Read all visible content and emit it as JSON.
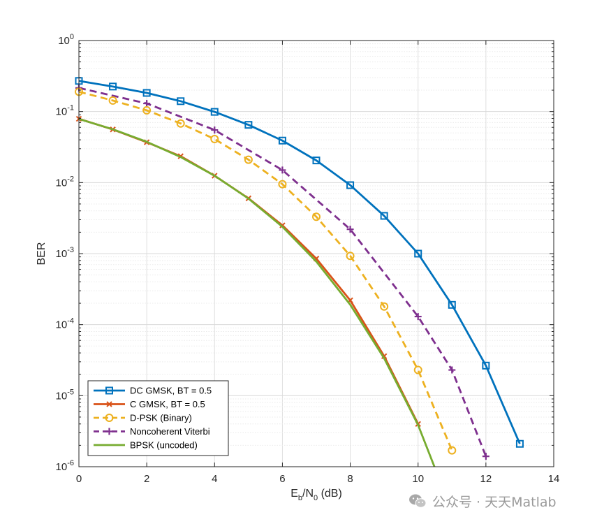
{
  "chart_data": {
    "type": "line",
    "title": "",
    "xlabel": {
      "main": "E",
      "sub1": "b",
      "mid": "/N",
      "sub2": "0",
      "end": " (dB)"
    },
    "ylabel": "BER",
    "xlim": [
      0,
      14
    ],
    "ylim": [
      1e-06,
      1
    ],
    "yscale": "log",
    "grid": true,
    "minor_grid": true,
    "legend_position": "bottom-left",
    "xticks": [
      "0",
      "2",
      "4",
      "6",
      "8",
      "10",
      "12",
      "14"
    ],
    "yticks": [
      {
        "base": "10",
        "exp": "0"
      },
      {
        "base": "10",
        "exp": "-1"
      },
      {
        "base": "10",
        "exp": "-2"
      },
      {
        "base": "10",
        "exp": "-3"
      },
      {
        "base": "10",
        "exp": "-4"
      },
      {
        "base": "10",
        "exp": "-5"
      },
      {
        "base": "10",
        "exp": "-6"
      }
    ],
    "series": [
      {
        "name": "DC GMSK, BT = 0.5",
        "color": "#0072BD",
        "dash": "solid",
        "marker": "square",
        "x": [
          0,
          1,
          2,
          3,
          4,
          5,
          6,
          7,
          8,
          9,
          10,
          11,
          12,
          13
        ],
        "y": [
          0.27,
          0.225,
          0.183,
          0.14,
          0.099,
          0.065,
          0.039,
          0.0205,
          0.0092,
          0.0034,
          0.001,
          0.00019,
          2.65e-05,
          2.1e-06
        ]
      },
      {
        "name": "C GMSK, BT = 0.5",
        "color": "#D95319",
        "dash": "solid",
        "marker": "x",
        "x": [
          0,
          1,
          2,
          3,
          4,
          5,
          6,
          7,
          8,
          9,
          10
        ],
        "y": [
          0.079,
          0.056,
          0.037,
          0.0235,
          0.0125,
          0.006,
          0.0025,
          0.00085,
          0.00022,
          3.6e-05,
          4e-06
        ]
      },
      {
        "name": "D-PSK (Binary)",
        "color": "#EDB120",
        "dash": "dashed",
        "marker": "circle",
        "x": [
          0,
          1,
          2,
          3,
          4,
          5,
          6,
          7,
          8,
          9,
          10,
          11
        ],
        "y": [
          0.19,
          0.143,
          0.104,
          0.068,
          0.041,
          0.021,
          0.0095,
          0.0033,
          0.00093,
          0.00018,
          2.3e-05,
          1.7e-06
        ]
      },
      {
        "name": "Noncoherent Viterbi",
        "color": "#7E2F8E",
        "dash": "dashed",
        "marker": "plus",
        "x": [
          0,
          2,
          4,
          6,
          8,
          10,
          11,
          12
        ],
        "y": [
          0.215,
          0.13,
          0.055,
          0.015,
          0.0022,
          0.00013,
          2.3e-05,
          1.4e-06
        ]
      },
      {
        "name": "BPSK (uncoded)",
        "color": "#77AC30",
        "dash": "solid",
        "marker": "none",
        "x": [
          0,
          1,
          2,
          3,
          4,
          5,
          6,
          7,
          8,
          9,
          10,
          10.5
        ],
        "y": [
          0.0786,
          0.0563,
          0.0375,
          0.0229,
          0.0125,
          0.00595,
          0.00239,
          0.000773,
          0.000191,
          3.36e-05,
          3.87e-06,
          9.5e-07
        ]
      }
    ]
  },
  "watermark": {
    "text": "公众号 · 天天Matlab",
    "icon": "wechat-icon"
  }
}
